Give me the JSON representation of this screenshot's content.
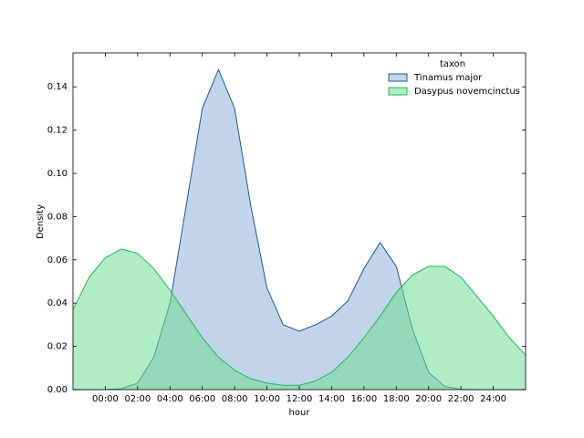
{
  "chart_data": {
    "type": "area",
    "x_label": "hour",
    "y_label": "Density",
    "legend_title": "taxon",
    "legend": "upper right",
    "x": [
      -2,
      -1,
      0,
      1,
      2,
      3,
      4,
      5,
      6,
      7,
      8,
      9,
      10,
      11,
      12,
      13,
      14,
      15,
      16,
      17,
      18,
      19,
      20,
      21,
      22,
      23,
      24,
      25,
      26
    ],
    "series": [
      {
        "name": "Tinamus major",
        "color": "#1a5a9a",
        "fill": "#8fb0d8",
        "values": [
          0,
          0,
          0,
          0.0005,
          0.003,
          0.015,
          0.04,
          0.085,
          0.13,
          0.148,
          0.13,
          0.085,
          0.047,
          0.03,
          0.027,
          0.03,
          0.034,
          0.041,
          0.056,
          0.068,
          0.057,
          0.028,
          0.008,
          0.0015,
          0.0002,
          0,
          0,
          0,
          0
        ]
      },
      {
        "name": "Dasypus novemcinctus",
        "color": "#1db954",
        "fill": "#6fdc93",
        "values": [
          0.037,
          0.052,
          0.061,
          0.065,
          0.063,
          0.056,
          0.046,
          0.035,
          0.024,
          0.015,
          0.009,
          0.005,
          0.003,
          0.002,
          0.002,
          0.004,
          0.008,
          0.015,
          0.024,
          0.034,
          0.045,
          0.053,
          0.057,
          0.057,
          0.052,
          0.043,
          0.034,
          0.024,
          0.016
        ]
      }
    ],
    "xlim": [
      -2,
      26
    ],
    "xticks": [
      {
        "value": 0,
        "label": "00:00"
      },
      {
        "value": 2,
        "label": "02:00"
      },
      {
        "value": 4,
        "label": "04:00"
      },
      {
        "value": 6,
        "label": "06:00"
      },
      {
        "value": 8,
        "label": "08:00"
      },
      {
        "value": 10,
        "label": "10:00"
      },
      {
        "value": 12,
        "label": "12:00"
      },
      {
        "value": 14,
        "label": "14:00"
      },
      {
        "value": 16,
        "label": "16:00"
      },
      {
        "value": 18,
        "label": "18:00"
      },
      {
        "value": 20,
        "label": "20:00"
      },
      {
        "value": 22,
        "label": "22:00"
      },
      {
        "value": 24,
        "label": "24:00"
      }
    ],
    "ylim": [
      0,
      0.1557
    ],
    "yticks": [
      {
        "value": 0,
        "label": "0.00"
      },
      {
        "value": 0.02,
        "label": "0.02"
      },
      {
        "value": 0.04,
        "label": "0.04"
      },
      {
        "value": 0.06,
        "label": "0.06"
      },
      {
        "value": 0.08,
        "label": "0.08"
      },
      {
        "value": 0.1,
        "label": "0.10"
      },
      {
        "value": 0.12,
        "label": "0.12"
      },
      {
        "value": 0.14,
        "label": "0.14"
      }
    ]
  }
}
